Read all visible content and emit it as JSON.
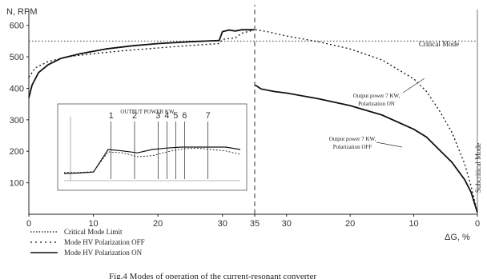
{
  "chart_data": {
    "type": "line",
    "ylabel": "N, RPM",
    "xlabel": "ΔG, %",
    "caption": "Fig.4 Modes of operation of the current-resonant converter",
    "ylim": [
      0,
      650
    ],
    "yticks": [
      "100",
      "200",
      "300",
      "400",
      "500",
      "600"
    ],
    "left_axis": {
      "range": [
        0,
        35
      ],
      "ticks": [
        "0",
        "10",
        "20",
        "30",
        "35"
      ]
    },
    "right_axis": {
      "range": [
        35,
        0
      ],
      "direction": "decreasing",
      "ticks": [
        "35",
        "30",
        "20",
        "10",
        "0"
      ]
    },
    "critical_level": 550,
    "labels": {
      "critical_mode": "Critical Mode",
      "subcritical_mode": "Subcritical Mode",
      "output_on": [
        "Output power 7 KW,",
        "Polarization ON"
      ],
      "output_off": [
        "Output power 7 KW,",
        "Polarization OFF"
      ],
      "inset_title": "OUTPUT POWER KW",
      "inset_markers": [
        "1",
        "2",
        "3",
        "4",
        "5",
        "6",
        "7"
      ]
    },
    "legend": [
      {
        "label": "Critical Mode Limit",
        "style": "dotted"
      },
      {
        "label": "Mode HV Polarization OFF",
        "style": "dashed"
      },
      {
        "label": "Mode HV Polarization ON",
        "style": "solid"
      }
    ],
    "series": [
      {
        "name": "Mode HV Polarization ON",
        "style": "solid",
        "left": [
          [
            0,
            370
          ],
          [
            0.5,
            410
          ],
          [
            1.5,
            450
          ],
          [
            3,
            475
          ],
          [
            5,
            495
          ],
          [
            8,
            510
          ],
          [
            12,
            525
          ],
          [
            16,
            535
          ],
          [
            20,
            542
          ],
          [
            25,
            548
          ],
          [
            29.5,
            552
          ],
          [
            30,
            580
          ],
          [
            31,
            585
          ],
          [
            32,
            582
          ],
          [
            33,
            586
          ],
          [
            34.9,
            586
          ]
        ],
        "right": [
          [
            34.9,
            410
          ],
          [
            34,
            398
          ],
          [
            32,
            390
          ],
          [
            30,
            385
          ],
          [
            25,
            367
          ],
          [
            20,
            345
          ],
          [
            15,
            315
          ],
          [
            10,
            270
          ],
          [
            8,
            245
          ],
          [
            6,
            205
          ],
          [
            4,
            165
          ],
          [
            2,
            110
          ],
          [
            1,
            70
          ],
          [
            0,
            5
          ]
        ]
      },
      {
        "name": "Mode HV Polarization OFF",
        "style": "dotted",
        "left": [
          [
            0,
            435
          ],
          [
            1,
            465
          ],
          [
            3,
            485
          ],
          [
            6,
            500
          ],
          [
            10,
            510
          ],
          [
            15,
            520
          ],
          [
            20,
            528
          ],
          [
            25,
            536
          ],
          [
            29.5,
            542
          ],
          [
            30,
            555
          ],
          [
            31,
            558
          ],
          [
            32,
            560
          ],
          [
            33,
            575
          ],
          [
            34.9,
            585
          ]
        ],
        "right": [
          [
            34.9,
            586
          ],
          [
            33,
            580
          ],
          [
            30,
            566
          ],
          [
            25,
            548
          ],
          [
            20,
            525
          ],
          [
            15,
            490
          ],
          [
            10,
            430
          ],
          [
            8,
            390
          ],
          [
            6,
            330
          ],
          [
            4,
            260
          ],
          [
            2,
            160
          ],
          [
            1,
            90
          ],
          [
            0,
            5
          ]
        ]
      }
    ],
    "inset": {
      "x": [
        0,
        1,
        2,
        3,
        4,
        5,
        6,
        7,
        8,
        9,
        10,
        11,
        12
      ],
      "solid": [
        0.05,
        0.06,
        0.08,
        0.55,
        0.52,
        0.48,
        0.55,
        0.58,
        0.6,
        0.6,
        0.6,
        0.6,
        0.55
      ],
      "dotted": [
        0.07,
        0.07,
        0.09,
        0.5,
        0.48,
        0.4,
        0.42,
        0.5,
        0.56,
        0.58,
        0.55,
        0.52,
        0.45
      ],
      "marker_x": [
        3.2,
        4.8,
        6.4,
        7.0,
        7.6,
        8.2,
        9.8
      ]
    }
  }
}
